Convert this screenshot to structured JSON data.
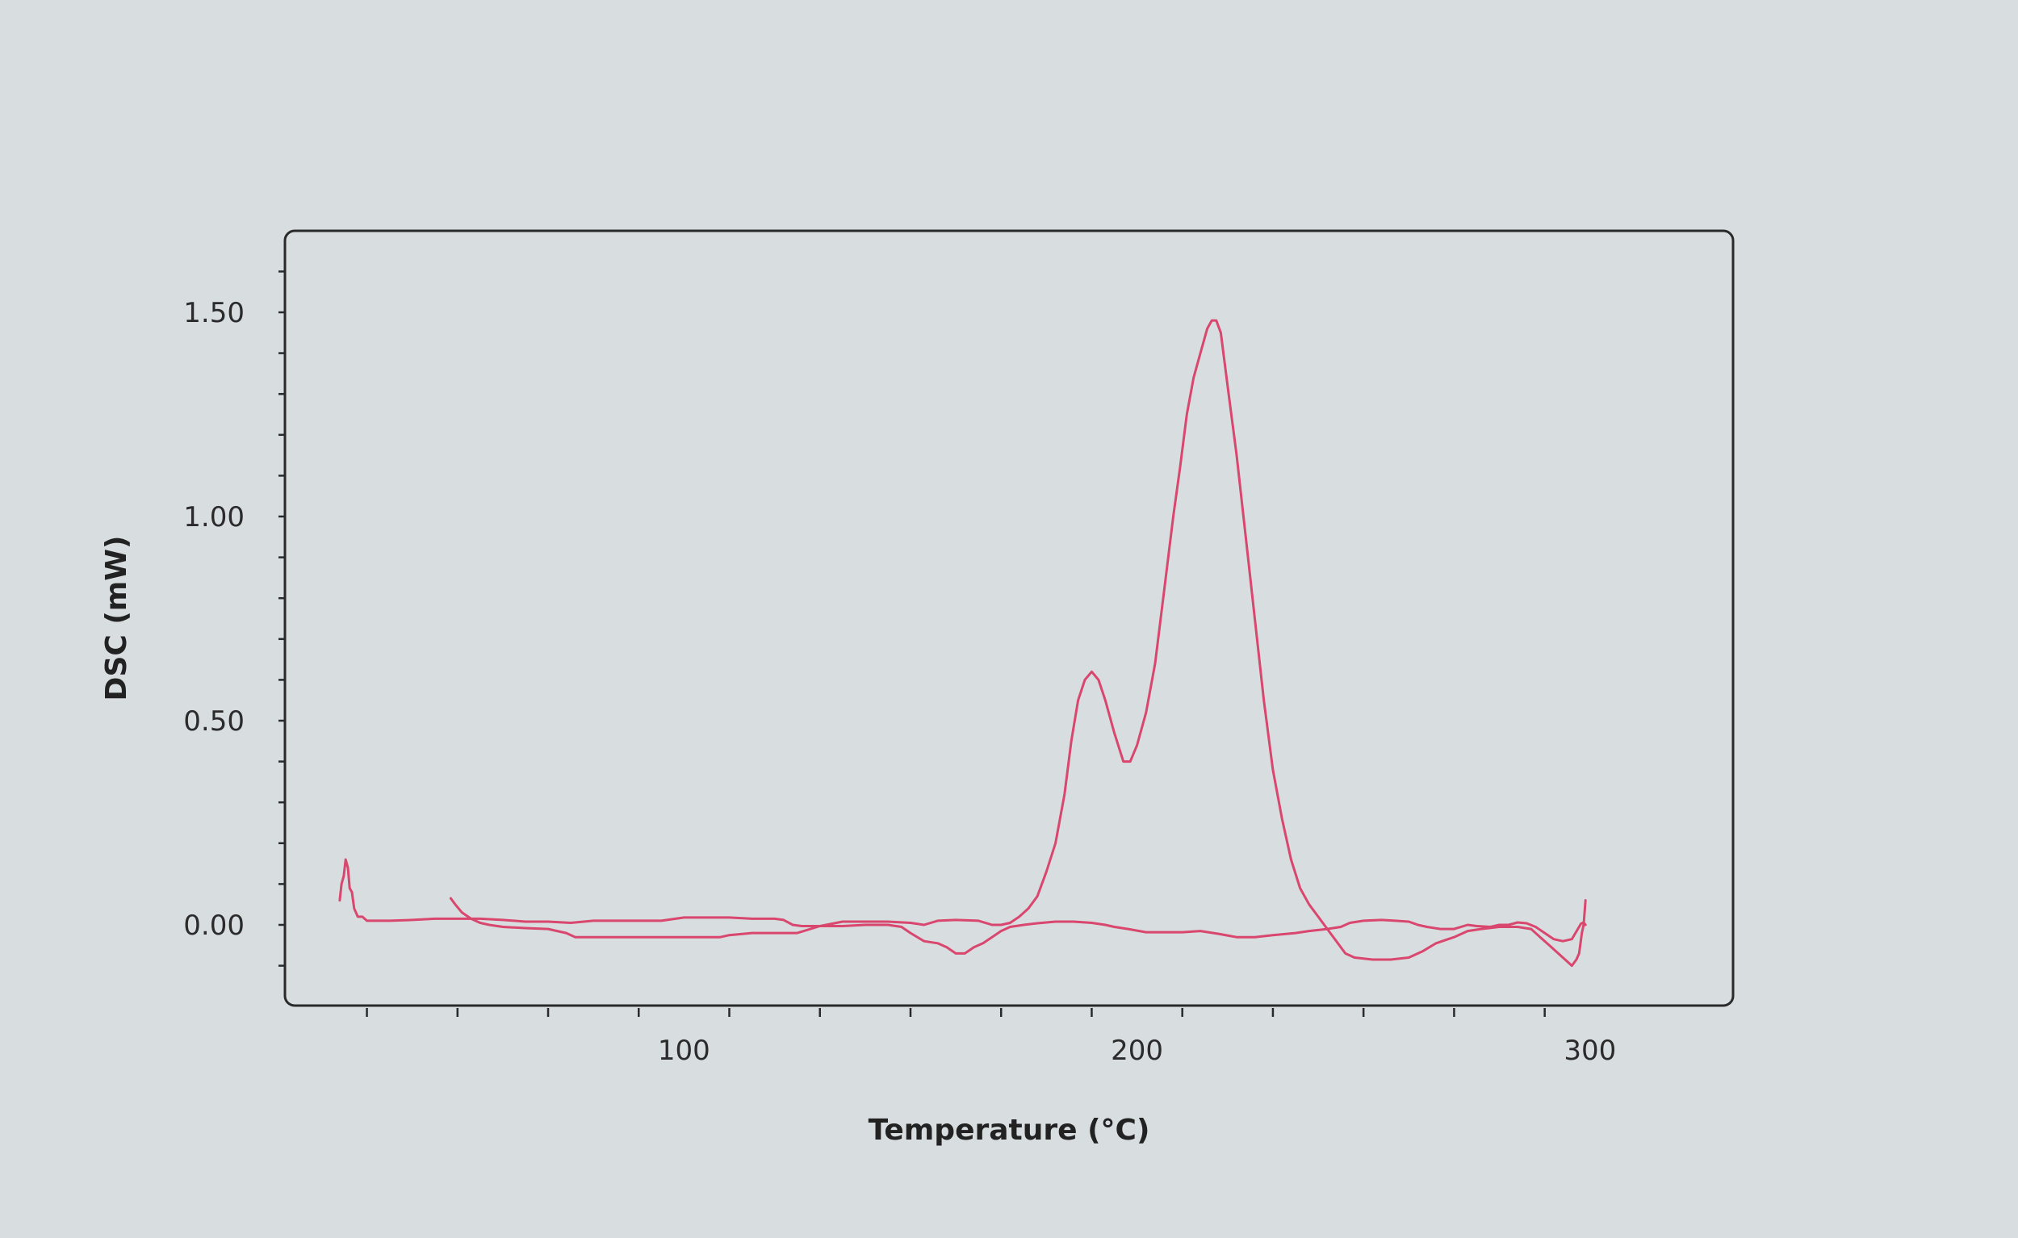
{
  "chart_data": {
    "type": "line",
    "title": "",
    "xlabel": "Temperature (°C)",
    "ylabel": "DSC (mW)",
    "xlim": [
      -20,
      320
    ],
    "ylim": [
      -0.2,
      1.7
    ],
    "x_ticks": [
      100,
      200,
      300
    ],
    "x_tick_labels": [
      "100",
      "200",
      "300"
    ],
    "y_ticks": [
      0.0,
      0.5,
      1.0,
      1.5
    ],
    "y_tick_labels": [
      "0.00",
      "0.50",
      "1.00",
      "1.50"
    ],
    "grid": false,
    "legend": "none",
    "series": [
      {
        "name": "",
        "color": "#d9466e",
        "points": [
          [
            24.0,
            0.06
          ],
          [
            24.4,
            0.1
          ],
          [
            24.9,
            0.12
          ],
          [
            25.3,
            0.16
          ],
          [
            25.8,
            0.14
          ],
          [
            26.2,
            0.09
          ],
          [
            26.7,
            0.08
          ],
          [
            27.2,
            0.04
          ],
          [
            28.0,
            0.02
          ],
          [
            29.0,
            0.02
          ],
          [
            30.0,
            0.01
          ],
          [
            35,
            0.01
          ],
          [
            40,
            0.012
          ],
          [
            45,
            0.015
          ],
          [
            50,
            0.015
          ],
          [
            55,
            0.015
          ],
          [
            60,
            0.012
          ],
          [
            65,
            0.008
          ],
          [
            70,
            0.008
          ],
          [
            75,
            0.005
          ],
          [
            80,
            0.01
          ],
          [
            85,
            0.01
          ],
          [
            90,
            0.01
          ],
          [
            95,
            0.01
          ],
          [
            100,
            0.018
          ],
          [
            105,
            0.018
          ],
          [
            110,
            0.018
          ],
          [
            115,
            0.015
          ],
          [
            120,
            0.015
          ],
          [
            122,
            0.012
          ],
          [
            124,
            0.0
          ],
          [
            126,
            -0.003
          ],
          [
            130,
            -0.003
          ],
          [
            135,
            0.008
          ],
          [
            140,
            0.008
          ],
          [
            145,
            0.008
          ],
          [
            150,
            0.005
          ],
          [
            153,
            0.0
          ],
          [
            156,
            0.01
          ],
          [
            160,
            0.012
          ],
          [
            165,
            0.01
          ],
          [
            168,
            0.0
          ],
          [
            170,
            0.0
          ],
          [
            172,
            0.005
          ],
          [
            174,
            0.02
          ],
          [
            176,
            0.04
          ],
          [
            178,
            0.07
          ],
          [
            180,
            0.13
          ],
          [
            182,
            0.2
          ],
          [
            184,
            0.32
          ],
          [
            185.5,
            0.45
          ],
          [
            187,
            0.55
          ],
          [
            188.5,
            0.6
          ],
          [
            190,
            0.62
          ],
          [
            191.5,
            0.6
          ],
          [
            193,
            0.55
          ],
          [
            195,
            0.47
          ],
          [
            197,
            0.4
          ],
          [
            198.5,
            0.4
          ],
          [
            200,
            0.44
          ],
          [
            202,
            0.52
          ],
          [
            204,
            0.64
          ],
          [
            206,
            0.82
          ],
          [
            208,
            1.0
          ],
          [
            209.5,
            1.12
          ],
          [
            211,
            1.25
          ],
          [
            212.5,
            1.34
          ],
          [
            214,
            1.4
          ],
          [
            215.5,
            1.46
          ],
          [
            216.5,
            1.48
          ],
          [
            217.5,
            1.48
          ],
          [
            218.5,
            1.45
          ],
          [
            220,
            1.32
          ],
          [
            222,
            1.15
          ],
          [
            224,
            0.95
          ],
          [
            226,
            0.75
          ],
          [
            228,
            0.55
          ],
          [
            230,
            0.38
          ],
          [
            232,
            0.26
          ],
          [
            234,
            0.16
          ],
          [
            236,
            0.09
          ],
          [
            238,
            0.05
          ],
          [
            240,
            0.02
          ],
          [
            242,
            -0.01
          ],
          [
            244,
            -0.04
          ],
          [
            246,
            -0.07
          ],
          [
            248,
            -0.08
          ],
          [
            252,
            -0.085
          ],
          [
            256,
            -0.085
          ],
          [
            260,
            -0.08
          ],
          [
            263,
            -0.065
          ],
          [
            266,
            -0.045
          ],
          [
            270,
            -0.03
          ],
          [
            273,
            -0.015
          ],
          [
            276,
            -0.01
          ],
          [
            280,
            -0.005
          ],
          [
            284,
            -0.005
          ],
          [
            287,
            -0.01
          ],
          [
            289,
            -0.03
          ],
          [
            291,
            -0.05
          ],
          [
            293,
            -0.07
          ],
          [
            295,
            -0.09
          ],
          [
            296,
            -0.1
          ],
          [
            297,
            -0.085
          ],
          [
            297.6,
            -0.07
          ],
          [
            298.2,
            -0.02
          ],
          [
            298.6,
            0.0
          ],
          [
            299.0,
            0.06
          ]
        ]
      },
      {
        "name": "",
        "color": "#d9466e",
        "points": [
          [
            299.0,
            0.0
          ],
          [
            298.6,
            0.006
          ],
          [
            298,
            0.003
          ],
          [
            296,
            -0.035
          ],
          [
            294,
            -0.04
          ],
          [
            292,
            -0.035
          ],
          [
            290,
            -0.02
          ],
          [
            288,
            -0.005
          ],
          [
            286,
            0.004
          ],
          [
            284,
            0.006
          ],
          [
            282,
            0.0
          ],
          [
            280,
            0.0
          ],
          [
            278,
            -0.005
          ],
          [
            275,
            -0.003
          ],
          [
            273,
            0.0
          ],
          [
            270,
            -0.01
          ],
          [
            267,
            -0.01
          ],
          [
            264,
            -0.005
          ],
          [
            262,
            0.0
          ],
          [
            260,
            0.008
          ],
          [
            257,
            0.01
          ],
          [
            254,
            0.012
          ],
          [
            250,
            0.01
          ],
          [
            247,
            0.005
          ],
          [
            245,
            -0.005
          ],
          [
            242,
            -0.01
          ],
          [
            238,
            -0.015
          ],
          [
            235,
            -0.02
          ],
          [
            230,
            -0.025
          ],
          [
            226,
            -0.03
          ],
          [
            222,
            -0.03
          ],
          [
            218,
            -0.022
          ],
          [
            214,
            -0.015
          ],
          [
            210,
            -0.018
          ],
          [
            206,
            -0.018
          ],
          [
            202,
            -0.018
          ],
          [
            198,
            -0.01
          ],
          [
            195,
            -0.005
          ],
          [
            193,
            0.0
          ],
          [
            190,
            0.005
          ],
          [
            186,
            0.008
          ],
          [
            182,
            0.008
          ],
          [
            178,
            0.004
          ],
          [
            175,
            0.0
          ],
          [
            172,
            -0.005
          ],
          [
            170,
            -0.015
          ],
          [
            168,
            -0.03
          ],
          [
            166,
            -0.045
          ],
          [
            164,
            -0.055
          ],
          [
            162,
            -0.07
          ],
          [
            160,
            -0.07
          ],
          [
            158,
            -0.055
          ],
          [
            156,
            -0.045
          ],
          [
            153,
            -0.04
          ],
          [
            150,
            -0.02
          ],
          [
            148,
            -0.005
          ],
          [
            145,
            0.0
          ],
          [
            140,
            0.0
          ],
          [
            135,
            -0.003
          ],
          [
            130,
            -0.003
          ],
          [
            125,
            -0.02
          ],
          [
            120,
            -0.02
          ],
          [
            115,
            -0.02
          ],
          [
            110,
            -0.025
          ],
          [
            108,
            -0.03
          ],
          [
            105,
            -0.03
          ],
          [
            100,
            -0.03
          ],
          [
            95,
            -0.03
          ],
          [
            90,
            -0.03
          ],
          [
            85,
            -0.03
          ],
          [
            80,
            -0.03
          ],
          [
            76,
            -0.03
          ],
          [
            74,
            -0.02
          ],
          [
            72,
            -0.015
          ],
          [
            70,
            -0.01
          ],
          [
            65,
            -0.008
          ],
          [
            60,
            -0.005
          ],
          [
            57,
            0.0
          ],
          [
            55,
            0.005
          ],
          [
            53,
            0.015
          ],
          [
            51,
            0.03
          ],
          [
            49.5,
            0.05
          ],
          [
            48.5,
            0.065
          ]
        ]
      }
    ]
  }
}
